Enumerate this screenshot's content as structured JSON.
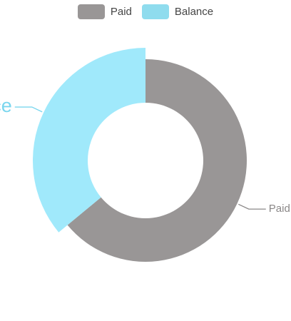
{
  "chart_data": {
    "type": "pie",
    "variant": "doughnut",
    "legend_position": "top",
    "slices": [
      {
        "label": "Paid",
        "value": 64,
        "color": "#999696",
        "label_color": "#8a8787",
        "label_side": "right"
      },
      {
        "label": "Balance",
        "value": 36,
        "color": "#a0e9fb",
        "label_color": "#7ad6ee",
        "label_side": "left"
      }
    ],
    "legend": [
      {
        "label": "Paid",
        "color": "#999696"
      },
      {
        "label": "Balance",
        "color": "#8fdcee"
      }
    ]
  }
}
